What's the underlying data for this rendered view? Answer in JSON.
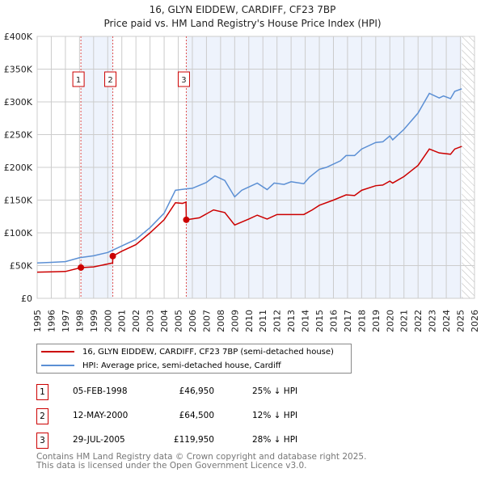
{
  "chart_data": {
    "type": "line",
    "title": "16, GLYN EIDDEW, CARDIFF, CF23 7BP",
    "subtitle": "Price paid vs. HM Land Registry's House Price Index (HPI)",
    "xlim": [
      1995,
      2026
    ],
    "ylim": [
      0,
      400000
    ],
    "yticks": [
      0,
      50000,
      100000,
      150000,
      200000,
      250000,
      300000,
      350000,
      400000
    ],
    "ytick_labels": [
      "£0",
      "£50K",
      "£100K",
      "£150K",
      "£200K",
      "£250K",
      "£300K",
      "£350K",
      "£400K"
    ],
    "xticks": [
      "1995",
      "1996",
      "1997",
      "1998",
      "1999",
      "2000",
      "2001",
      "2002",
      "2003",
      "2004",
      "2005",
      "2006",
      "2007",
      "2008",
      "2009",
      "2010",
      "2011",
      "2012",
      "2013",
      "2014",
      "2015",
      "2016",
      "2017",
      "2018",
      "2019",
      "2020",
      "2021",
      "2022",
      "2023",
      "2024",
      "2025",
      "2026"
    ],
    "grid": true,
    "series": [
      {
        "name": "16, GLYN EIDDEW, CARDIFF, CF23 7BP (semi-detached house)",
        "color": "#cc0000",
        "x": [
          1995,
          1996,
          1997,
          1998.1,
          1999,
          2000.35,
          2000.36,
          2001,
          2002,
          2003,
          2004,
          2004.8,
          2005.3,
          2005.55,
          2005.57,
          2006.5,
          2007.5,
          2008.3,
          2009,
          2010,
          2010.6,
          2011.3,
          2012,
          2013,
          2013.9,
          2014.5,
          2015,
          2016,
          2016.9,
          2017.5,
          2018,
          2019,
          2019.5,
          2020,
          2020.2,
          2021,
          2022,
          2022.8,
          2023.5,
          2024.3,
          2024.6,
          2025.1
        ],
        "y": [
          40000,
          40500,
          41000,
          46950,
          48000,
          54000,
          64500,
          72000,
          82000,
          100000,
          120000,
          146000,
          145000,
          147000,
          119950,
          123000,
          135000,
          131000,
          112000,
          121000,
          127000,
          121000,
          128000,
          128000,
          128000,
          135000,
          142000,
          150000,
          158000,
          157000,
          165000,
          172000,
          173000,
          179000,
          176000,
          186000,
          203000,
          228000,
          222000,
          220000,
          228000,
          232000
        ]
      },
      {
        "name": "HPI: Average price, semi-detached house, Cardiff",
        "color": "#5b8fd4",
        "x": [
          1995,
          1996,
          1997,
          1998,
          1999,
          2000,
          2001,
          2002,
          2003,
          2004,
          2004.8,
          2005.5,
          2006,
          2007,
          2007.6,
          2008.3,
          2009,
          2009.5,
          2010,
          2010.6,
          2011.3,
          2011.8,
          2012.5,
          2013,
          2013.9,
          2014.3,
          2015,
          2015.5,
          2016.5,
          2016.9,
          2017.5,
          2018,
          2019,
          2019.5,
          2020,
          2020.2,
          2021,
          2022,
          2022.8,
          2023.5,
          2023.8,
          2024.3,
          2024.6,
          2025.1
        ],
        "y": [
          54000,
          55000,
          56000,
          62000,
          65000,
          70000,
          80000,
          90000,
          108000,
          130000,
          165000,
          167000,
          168000,
          177000,
          187000,
          180000,
          155000,
          165000,
          170000,
          176000,
          166000,
          176000,
          174000,
          178000,
          175000,
          185000,
          197000,
          200000,
          210000,
          218000,
          218000,
          228000,
          238000,
          239000,
          248000,
          242000,
          258000,
          283000,
          313000,
          306000,
          309000,
          305000,
          316000,
          320000
        ]
      }
    ],
    "sales": [
      {
        "label": "1",
        "x": 1998.1,
        "y": 46950,
        "date": "05-FEB-1998",
        "price": "£46,950",
        "hpi": "25% ↓ HPI"
      },
      {
        "label": "2",
        "x": 2000.36,
        "y": 64500,
        "date": "12-MAY-2000",
        "price": "£64,500",
        "hpi": "12% ↓ HPI"
      },
      {
        "label": "3",
        "x": 2005.57,
        "y": 119950,
        "date": "29-JUL-2005",
        "price": "£119,950",
        "hpi": "28% ↓ HPI"
      }
    ],
    "shaded_ranges": [
      [
        1998.1,
        2000.36
      ],
      [
        2005.57,
        2025.1
      ]
    ],
    "hatched_from": 2025.1
  },
  "footer": [
    "Contains HM Land Registry data © Crown copyright and database right 2025.",
    "This data is licensed under the Open Government Licence v3.0."
  ]
}
